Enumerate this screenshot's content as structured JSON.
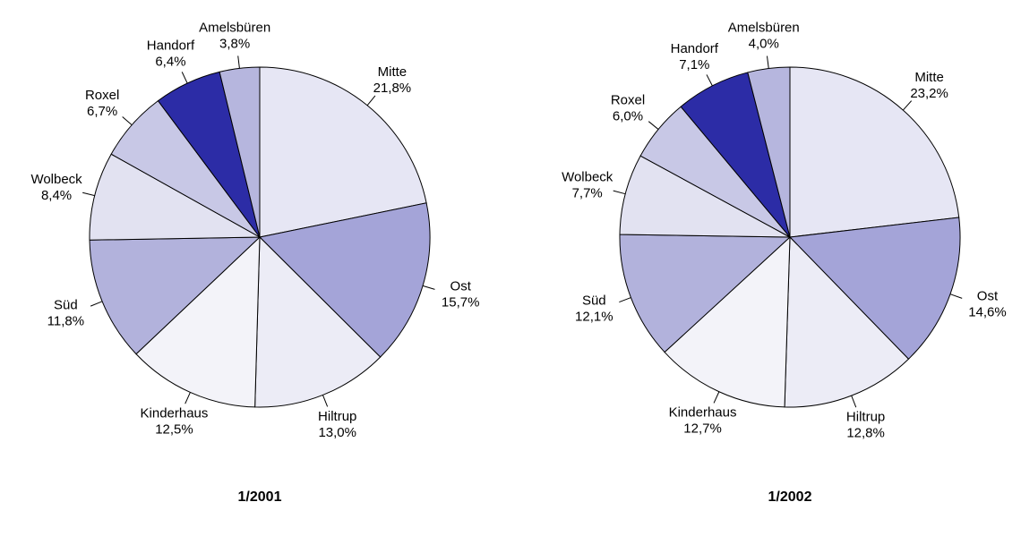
{
  "chart_data": [
    {
      "type": "pie",
      "title": "1/2001",
      "categories": [
        "Mitte",
        "Ost",
        "Hiltrup",
        "Kinderhaus",
        "Süd",
        "Wolbeck",
        "Roxel",
        "Handorf",
        "Amelsbüren"
      ],
      "values": [
        21.8,
        15.7,
        13.0,
        12.5,
        11.8,
        8.4,
        6.7,
        6.4,
        3.8
      ],
      "value_labels": [
        "21,8%",
        "15,7%",
        "13,0%",
        "12,5%",
        "11,8%",
        "8,4%",
        "6,7%",
        "6,4%",
        "3,8%"
      ],
      "colors": [
        "#e6e6f4",
        "#a4a4d8",
        "#ececf6",
        "#f3f3f9",
        "#b2b2dc",
        "#e2e2f1",
        "#c8c8e6",
        "#2c2ca6",
        "#b6b6de"
      ]
    },
    {
      "type": "pie",
      "title": "1/2002",
      "categories": [
        "Mitte",
        "Ost",
        "Hiltrup",
        "Kinderhaus",
        "Süd",
        "Wolbeck",
        "Roxel",
        "Handorf",
        "Amelsbüren"
      ],
      "values": [
        23.2,
        14.6,
        12.8,
        12.7,
        12.1,
        7.7,
        6.0,
        7.1,
        4.0
      ],
      "value_labels": [
        "23,2%",
        "14,6%",
        "12,8%",
        "12,7%",
        "12,1%",
        "7,7%",
        "6,0%",
        "7,1%",
        "4,0%"
      ],
      "colors": [
        "#e6e6f4",
        "#a4a4d8",
        "#ececf6",
        "#f3f3f9",
        "#b2b2dc",
        "#e2e2f1",
        "#c8c8e6",
        "#2c2ca6",
        "#b6b6de"
      ]
    }
  ]
}
